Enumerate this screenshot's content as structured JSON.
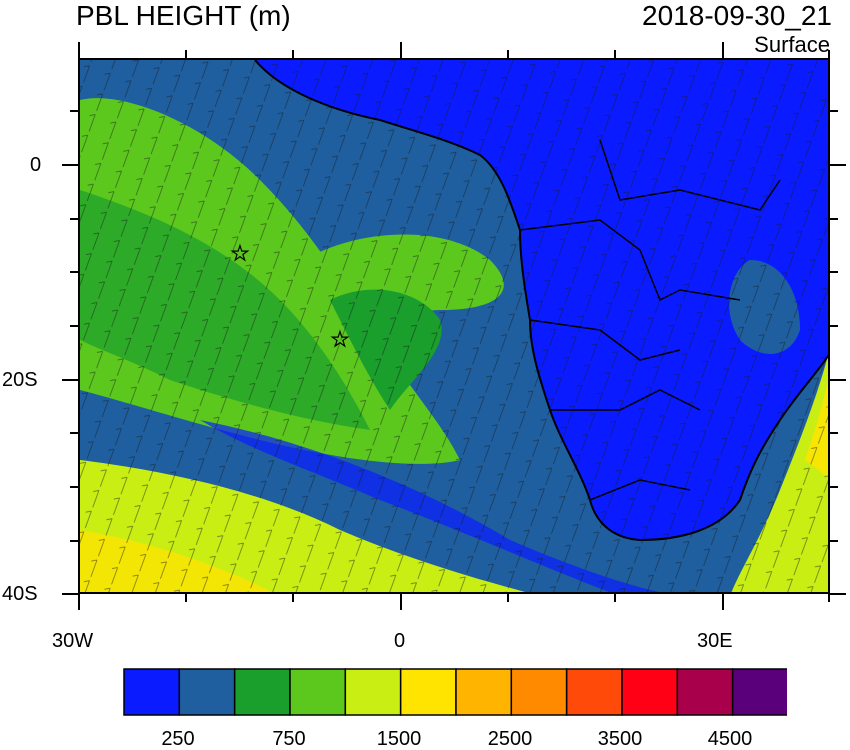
{
  "header": {
    "title": "PBL HEIGHT (m)",
    "valid_time": "2018-09-30_21",
    "level": "Surface"
  },
  "axes": {
    "lon_labels": [
      "30W",
      "0",
      "30E"
    ],
    "lat_labels": [
      "0",
      "20S",
      "40S"
    ]
  },
  "colorbar": {
    "colors": [
      "#0a1cff",
      "#1f5fa0",
      "#1a9e2c",
      "#5cc81e",
      "#c8ee14",
      "#ffe400",
      "#ffb400",
      "#ff8a00",
      "#ff4a0a",
      "#ff0014",
      "#a8004a",
      "#5a007a"
    ],
    "labels": [
      "250",
      "750",
      "1500",
      "2500",
      "3500",
      "4500"
    ]
  },
  "colors": {
    "land_low": "#0a1cff",
    "ocean_mid": "#1f5fa0",
    "green_dark": "#1a9e2c",
    "green_light": "#5cc81e",
    "yellow_green": "#c8ee14",
    "yellow": "#ffe400"
  },
  "markers": {
    "icon": "star-marker-icon"
  }
}
